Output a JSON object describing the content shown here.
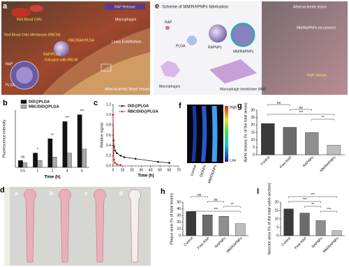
{
  "panel_a": {
    "label": "a",
    "texts": [
      "RAP Release",
      "Red Blood Cells",
      "Red Blood Cells Membrane (RBCM)",
      "RBC/RAP/PLGA",
      "Extrusion with RBCM",
      "RAP/PLGA",
      "RAP",
      "PLGA",
      "Leaky Endothelium",
      "Macrophages",
      "Atherosclerotic Blood Vessels"
    ]
  },
  "panel_e": {
    "label": "e",
    "title": "Scheme of MM/RAPNPs fabrication",
    "texts": [
      "RAP",
      "PLGA",
      "RAPNPs",
      "MM/RAPNPs",
      "Macrophages",
      "Macrophage membrane (MM)",
      "Atherosclerotic lesion",
      "MM/RAPNPs recruitment",
      "RAP release"
    ]
  },
  "panel_f": {
    "label": "f",
    "scale_high": "High",
    "scale_low": "Low",
    "samples": [
      "Control",
      "DiDNPs",
      "MM/DiDNPs"
    ]
  },
  "panel_d": {
    "label": "d",
    "samples": [
      "a",
      "b",
      "c",
      "d"
    ]
  },
  "chart_data": [
    {
      "type": "bar",
      "panel": "b",
      "y_label": "Fluorescence intensity",
      "x_label": "Time (h)",
      "categories": [
        "0.5",
        "1",
        "2",
        "4",
        "6"
      ],
      "series": [
        {
          "name": "DiD@PLGA",
          "color": "#111111",
          "values": [
            12,
            25,
            50,
            80,
            92
          ]
        },
        {
          "name": "RBC/DiD@PLGA",
          "color": "#a8a8a8",
          "values": [
            8,
            12,
            18,
            25,
            32
          ]
        }
      ],
      "ylim": [
        0,
        100
      ],
      "annotations": [
        "ns",
        "*",
        "**",
        "***",
        "***"
      ]
    },
    {
      "type": "line",
      "panel": "c",
      "y_label": "Relative signal",
      "x_label": "Time (h)",
      "x": [
        0,
        0.5,
        1,
        2,
        4,
        8,
        12,
        24,
        48,
        60
      ],
      "series": [
        {
          "name": "DiD@PLGA",
          "color": "#111111",
          "values": [
            1.0,
            0.5,
            0.38,
            0.3,
            0.25,
            0.2,
            0.17,
            0.14,
            0.08,
            0.06
          ]
        },
        {
          "name": "RBC/DiD@PLGA",
          "color": "#e0201b",
          "values": [
            1.0,
            0.25,
            0.12,
            0.06,
            0.03,
            0.02,
            null,
            null,
            null,
            null
          ]
        }
      ],
      "xlim": [
        0,
        70
      ],
      "xticks": [
        0,
        10,
        20,
        30,
        40,
        50,
        60,
        70
      ],
      "ylim": [
        0,
        1.2
      ],
      "yticks": [
        {
          "value": 0,
          "label": "0.0"
        },
        0.2,
        0.4,
        0.6,
        0.8,
        {
          "value": 1,
          "label": "1.0"
        },
        1.2
      ]
    },
    {
      "type": "bar",
      "panel": "g",
      "y_label": "Aortic lesions (% of the total areas)",
      "categories": [
        "Control",
        "Free RAP",
        "RAPNPs",
        "MM/RAPNPs"
      ],
      "values": [
        21,
        18.5,
        15,
        6.5
      ],
      "colors": [
        "#3a3a3a",
        "#6b6b6b",
        "#8e8e8e",
        "#bdbdbd"
      ],
      "ylim": [
        0,
        30
      ],
      "yticks": [
        0,
        5,
        10,
        15,
        20,
        25,
        30
      ],
      "annotations": [
        "ns",
        "ns",
        "***",
        "**"
      ]
    },
    {
      "type": "bar",
      "panel": "h",
      "y_label": "Plaque area (% of total lesion)",
      "categories": [
        "Control",
        "Free RAP",
        "RAPNPs",
        "MM/RAPNPs"
      ],
      "values": [
        36,
        31,
        29,
        18
      ],
      "colors": [
        "#3a3a3a",
        "#6b6b6b",
        "#8e8e8e",
        "#bdbdbd"
      ],
      "ylim": [
        0,
        50
      ],
      "yticks": [
        0,
        10,
        20,
        30,
        40,
        50
      ],
      "annotations": [
        "ns",
        "ns",
        "**",
        "***"
      ]
    },
    {
      "type": "bar",
      "panel": "l",
      "y_label": "Necrotic area (% of the total valve section)",
      "categories": [
        "Control",
        "Free RAP",
        "RAPNPs",
        "MM/RAPNPs"
      ],
      "values": [
        16,
        13.5,
        9,
        3
      ],
      "colors": [
        "#3a3a3a",
        "#6b6b6b",
        "#8e8e8e",
        "#bdbdbd"
      ],
      "ylim": [
        0,
        20
      ],
      "yticks": [
        0,
        5,
        10,
        15,
        20
      ],
      "annotations": [
        "***",
        "***",
        "**",
        "***"
      ]
    }
  ]
}
